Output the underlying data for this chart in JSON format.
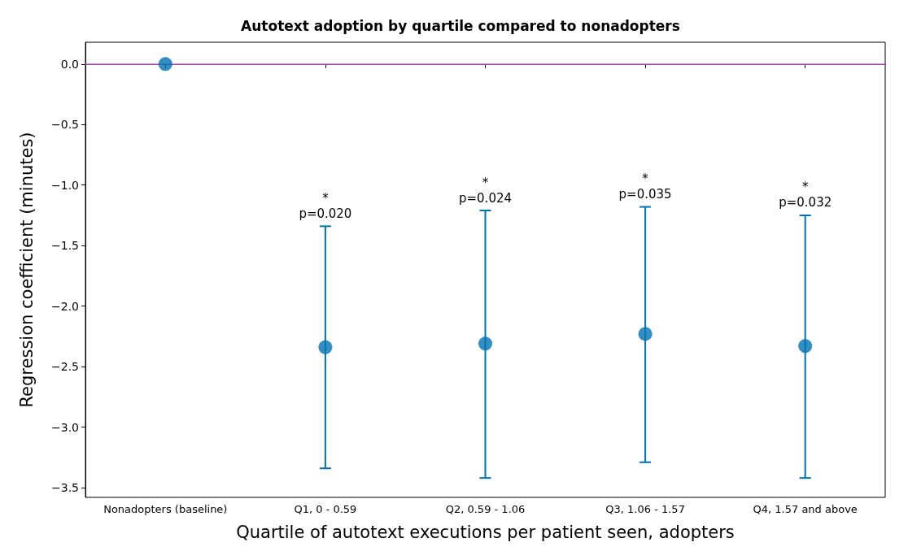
{
  "chart_data": {
    "type": "scatter",
    "title": "Autotext adoption by quartile compared to nonadopters",
    "xlabel": "Quartile of autotext executions per patient seen, adopters",
    "ylabel": "Regression coefficient (minutes)",
    "categories": [
      "Nonadopters (baseline)",
      "Q1, 0 - 0.59",
      "Q2, 0.59 - 1.06",
      "Q3, 1.06 - 1.57",
      "Q4, 1.57 and above"
    ],
    "series": [
      {
        "color": "#0072b2",
        "values": [
          0,
          -2.34,
          -2.31,
          -2.23,
          -2.33
        ],
        "errors": [
          null,
          [
            -3.34,
            -1.34
          ],
          [
            -3.42,
            -1.21
          ],
          [
            -3.29,
            -1.18
          ],
          [
            -3.42,
            -1.25
          ]
        ]
      }
    ],
    "ylim": [
      -3.58,
      0.18
    ],
    "yticks": [
      {
        "value": 0,
        "label": "0.0"
      },
      {
        "value": -0.5,
        "label": "−0.5"
      },
      {
        "value": -1,
        "label": "−1.0"
      },
      {
        "value": -1.5,
        "label": "−1.5"
      },
      {
        "value": -2,
        "label": "−2.0"
      },
      {
        "value": -2.5,
        "label": "−2.5"
      },
      {
        "value": -3,
        "label": "−3.0"
      },
      {
        "value": -3.5,
        "label": "−3.5"
      }
    ],
    "ref_lines": [
      {
        "axis": "y",
        "value": 0,
        "color": "#cc66cc"
      }
    ],
    "annotations": [
      {
        "text": "*\np=0.020",
        "x": "Q1, 0 - 0.59",
        "y": -1.34
      },
      {
        "text": "*\np=0.024",
        "x": "Q2, 0.59 - 1.06",
        "y": -1.21
      },
      {
        "text": "*\np=0.035",
        "x": "Q3, 1.06 - 1.57",
        "y": -1.18
      },
      {
        "text": "*\np=0.032",
        "x": "Q4, 1.57 and above",
        "y": -1.25
      }
    ],
    "marker": "circle",
    "grid": false
  }
}
